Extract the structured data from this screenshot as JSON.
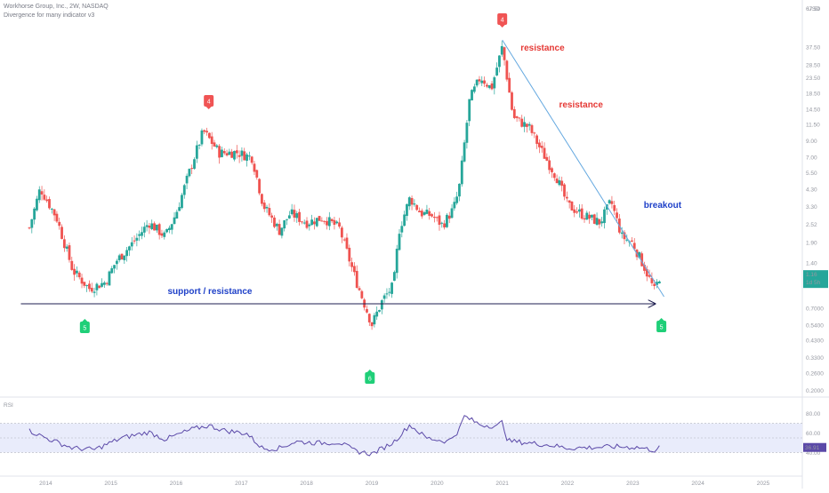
{
  "header": {
    "symbol_line": "Workhorse Group, Inc., 2W, NASDAQ",
    "indicator_line": "Divergence for many indicator v3"
  },
  "price_axis": {
    "currency": "USD",
    "labels": [
      "67.50",
      "37.50",
      "28.50",
      "23.50",
      "18.50",
      "14.50",
      "11.50",
      "9.00",
      "7.00",
      "5.50",
      "4.30",
      "3.30",
      "2.52",
      "1.90",
      "1.40",
      "1.00",
      "0.7000",
      "0.5400",
      "0.4300",
      "0.3300",
      "0.2600",
      "0.2000"
    ],
    "last_price": "1.16",
    "countdown": "1d 5h"
  },
  "rsi_panel": {
    "label": "RSI",
    "levels": [
      "80.00",
      "60.00",
      "40.00"
    ],
    "current": "36.91"
  },
  "time_axis": {
    "labels": [
      "2014",
      "2015",
      "2016",
      "2017",
      "2018",
      "2019",
      "2020",
      "2021",
      "2022",
      "2023",
      "2024",
      "2025"
    ]
  },
  "annotations": {
    "resistance_top": "resistance",
    "resistance_trend": "resistance",
    "breakout": "breakout",
    "support": "support / resistance",
    "peak_badge": "4",
    "trough_badge": "5",
    "low_badge": "6",
    "current_badge": "5"
  },
  "colors": {
    "up": "#26a69a",
    "down": "#ef5350",
    "resistance_text": "#e53935",
    "info_text": "#1e40c8",
    "trendline": "#64a8e0",
    "support_line": "#1e1e50",
    "rsi_line": "#5b49a8",
    "rsi_band": "#e9ecfb",
    "badge_red": "#f05454",
    "badge_green": "#1fcf78",
    "price_tag": "#26a69a"
  },
  "chart_data": {
    "type": "candlestick",
    "title": "Workhorse Group, Inc., 2W, NASDAQ",
    "price_scale": "log",
    "ylim": [
      0.2,
      67.5
    ],
    "x": [
      "2014",
      "2015",
      "2016",
      "2017",
      "2018",
      "2019",
      "2020",
      "2021",
      "2022",
      "2023",
      "2024",
      "2025"
    ],
    "price_path": [
      {
        "t": "2013-10",
        "close": 2.4
      },
      {
        "t": "2013-12",
        "close": 4.4
      },
      {
        "t": "2014-03",
        "close": 2.8
      },
      {
        "t": "2014-06",
        "close": 1.25
      },
      {
        "t": "2014-09",
        "close": 0.95
      },
      {
        "t": "2014-12",
        "close": 1.05
      },
      {
        "t": "2015-02",
        "close": 1.45
      },
      {
        "t": "2015-05",
        "close": 1.9
      },
      {
        "t": "2015-08",
        "close": 2.6
      },
      {
        "t": "2015-11",
        "close": 2.1
      },
      {
        "t": "2016-01",
        "close": 3.0
      },
      {
        "t": "2016-04",
        "close": 6.5
      },
      {
        "t": "2016-06",
        "close": 10.5
      },
      {
        "t": "2016-09",
        "close": 7.5
      },
      {
        "t": "2016-12",
        "close": 7.6
      },
      {
        "t": "2017-03",
        "close": 7.0
      },
      {
        "t": "2017-05",
        "close": 3.4
      },
      {
        "t": "2017-08",
        "close": 2.3
      },
      {
        "t": "2017-10",
        "close": 3.0
      },
      {
        "t": "2018-01",
        "close": 2.6
      },
      {
        "t": "2018-04",
        "close": 2.8
      },
      {
        "t": "2018-07",
        "close": 2.4
      },
      {
        "t": "2018-10",
        "close": 1.1
      },
      {
        "t": "2019-01",
        "close": 0.55
      },
      {
        "t": "2019-03",
        "close": 0.8
      },
      {
        "t": "2019-05",
        "close": 1.0
      },
      {
        "t": "2019-06",
        "close": 2.3
      },
      {
        "t": "2019-08",
        "close": 3.8
      },
      {
        "t": "2019-10",
        "close": 3.0
      },
      {
        "t": "2019-12",
        "close": 2.9
      },
      {
        "t": "2020-02",
        "close": 2.5
      },
      {
        "t": "2020-04",
        "close": 3.2
      },
      {
        "t": "2020-05",
        "close": 4.2
      },
      {
        "t": "2020-07",
        "close": 17.0
      },
      {
        "t": "2020-09",
        "close": 24.0
      },
      {
        "t": "2020-11",
        "close": 20.0
      },
      {
        "t": "2021-01",
        "close": 38.0
      },
      {
        "t": "2021-03",
        "close": 13.0
      },
      {
        "t": "2021-06",
        "close": 11.0
      },
      {
        "t": "2021-08",
        "close": 8.0
      },
      {
        "t": "2021-11",
        "close": 5.2
      },
      {
        "t": "2022-01",
        "close": 3.4
      },
      {
        "t": "2022-04",
        "close": 2.9
      },
      {
        "t": "2022-07",
        "close": 2.6
      },
      {
        "t": "2022-09",
        "close": 3.6
      },
      {
        "t": "2022-11",
        "close": 2.1
      },
      {
        "t": "2023-01",
        "close": 1.9
      },
      {
        "t": "2023-03",
        "close": 1.35
      },
      {
        "t": "2023-05",
        "close": 0.92
      },
      {
        "t": "2023-06",
        "close": 1.16
      }
    ],
    "rsi_path": [
      {
        "t": "2013-10",
        "v": 60
      },
      {
        "t": "2014-01",
        "v": 50
      },
      {
        "t": "2014-06",
        "v": 36
      },
      {
        "t": "2014-10",
        "v": 34
      },
      {
        "t": "2015-03",
        "v": 50
      },
      {
        "t": "2015-08",
        "v": 58
      },
      {
        "t": "2015-11",
        "v": 48
      },
      {
        "t": "2016-04",
        "v": 62
      },
      {
        "t": "2016-07",
        "v": 67
      },
      {
        "t": "2016-10",
        "v": 60
      },
      {
        "t": "2017-02",
        "v": 56
      },
      {
        "t": "2017-05",
        "v": 35
      },
      {
        "t": "2017-08",
        "v": 36
      },
      {
        "t": "2017-11",
        "v": 45
      },
      {
        "t": "2018-03",
        "v": 43
      },
      {
        "t": "2018-07",
        "v": 44
      },
      {
        "t": "2018-10",
        "v": 32
      },
      {
        "t": "2019-01",
        "v": 28
      },
      {
        "t": "2019-05",
        "v": 44
      },
      {
        "t": "2019-08",
        "v": 68
      },
      {
        "t": "2019-11",
        "v": 50
      },
      {
        "t": "2020-03",
        "v": 45
      },
      {
        "t": "2020-05",
        "v": 60
      },
      {
        "t": "2020-06",
        "v": 80
      },
      {
        "t": "2020-09",
        "v": 68
      },
      {
        "t": "2020-12",
        "v": 66
      },
      {
        "t": "2021-01",
        "v": 72
      },
      {
        "t": "2021-02",
        "v": 46
      },
      {
        "t": "2021-06",
        "v": 43
      },
      {
        "t": "2021-10",
        "v": 40
      },
      {
        "t": "2022-01",
        "v": 36
      },
      {
        "t": "2022-06",
        "v": 37
      },
      {
        "t": "2022-10",
        "v": 38
      },
      {
        "t": "2023-02",
        "v": 37
      },
      {
        "t": "2023-05",
        "v": 33
      },
      {
        "t": "2023-06",
        "v": 36.91
      }
    ]
  }
}
